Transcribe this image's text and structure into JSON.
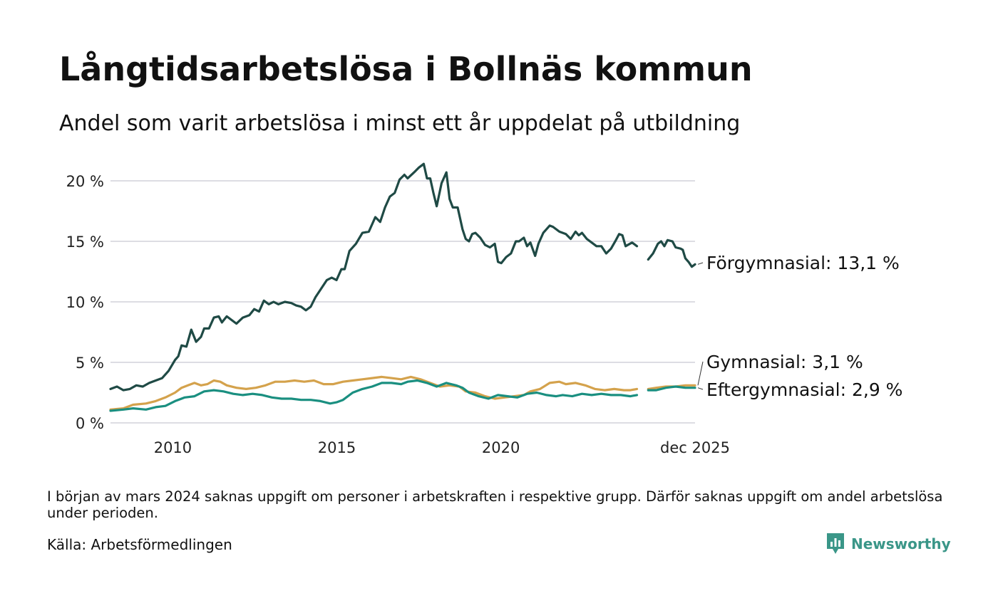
{
  "title": "Långtidsarbetslösa i Bollnäs kommun",
  "subtitle": "Andel som varit arbetslösa i minst ett år uppdelat på utbildning",
  "note": "I början av mars 2024 saknas uppgift om personer i arbetskraften i respektive grupp. Därför saknas uppgift om andel arbetslösa under perioden.",
  "source": "Källa: Arbetsförmedlingen",
  "brand": "Newsworthy",
  "colors": {
    "forgymnasial": "#1f4a45",
    "gymnasial": "#d4a24c",
    "eftergymnasial": "#1a8f80",
    "grid": "#dddde3",
    "brand": "#3a9688"
  },
  "chart_data": {
    "type": "line",
    "title": "Långtidsarbetslösa i Bollnäs kommun",
    "ylabel": "",
    "xlabel": "",
    "ylim": [
      0,
      22
    ],
    "xlim": [
      2008.1,
      2025.92
    ],
    "y_ticks": [
      0,
      5,
      10,
      15,
      20
    ],
    "y_tick_labels": [
      "0 %",
      "5 %",
      "10 %",
      "15 %",
      "20 %"
    ],
    "x_ticks": [
      2010,
      2015,
      2020,
      2025.92
    ],
    "x_tick_labels": [
      "2010",
      "2015",
      "2020",
      "dec 2025"
    ],
    "gap": [
      "2024-01",
      "2024-03"
    ],
    "series": [
      {
        "key": "forgymnasial",
        "name": "Förgymnasial",
        "end_label": "Förgymnasial: 13,1 %",
        "points": [
          [
            2008.1,
            2.8
          ],
          [
            2008.3,
            3.0
          ],
          [
            2008.5,
            2.7
          ],
          [
            2008.7,
            2.8
          ],
          [
            2008.9,
            3.1
          ],
          [
            2009.1,
            3.0
          ],
          [
            2009.3,
            3.3
          ],
          [
            2009.5,
            3.5
          ],
          [
            2009.7,
            3.7
          ],
          [
            2009.9,
            4.3
          ],
          [
            2010.1,
            5.2
          ],
          [
            2010.2,
            5.5
          ],
          [
            2010.3,
            6.4
          ],
          [
            2010.45,
            6.3
          ],
          [
            2010.6,
            7.7
          ],
          [
            2010.75,
            6.7
          ],
          [
            2010.9,
            7.1
          ],
          [
            2011.0,
            7.8
          ],
          [
            2011.15,
            7.8
          ],
          [
            2011.3,
            8.7
          ],
          [
            2011.45,
            8.8
          ],
          [
            2011.55,
            8.3
          ],
          [
            2011.7,
            8.8
          ],
          [
            2011.85,
            8.5
          ],
          [
            2012.0,
            8.2
          ],
          [
            2012.2,
            8.7
          ],
          [
            2012.4,
            8.9
          ],
          [
            2012.55,
            9.4
          ],
          [
            2012.7,
            9.2
          ],
          [
            2012.85,
            10.1
          ],
          [
            2013.0,
            9.8
          ],
          [
            2013.15,
            10.0
          ],
          [
            2013.3,
            9.8
          ],
          [
            2013.5,
            10.0
          ],
          [
            2013.7,
            9.9
          ],
          [
            2013.85,
            9.7
          ],
          [
            2014.0,
            9.6
          ],
          [
            2014.15,
            9.3
          ],
          [
            2014.3,
            9.6
          ],
          [
            2014.45,
            10.4
          ],
          [
            2014.6,
            11.0
          ],
          [
            2014.8,
            11.8
          ],
          [
            2014.95,
            12.0
          ],
          [
            2015.1,
            11.8
          ],
          [
            2015.25,
            12.7
          ],
          [
            2015.35,
            12.7
          ],
          [
            2015.5,
            14.2
          ],
          [
            2015.7,
            14.8
          ],
          [
            2015.9,
            15.7
          ],
          [
            2016.1,
            15.8
          ],
          [
            2016.3,
            17.0
          ],
          [
            2016.45,
            16.6
          ],
          [
            2016.6,
            17.8
          ],
          [
            2016.75,
            18.7
          ],
          [
            2016.9,
            19.0
          ],
          [
            2017.05,
            20.1
          ],
          [
            2017.2,
            20.5
          ],
          [
            2017.3,
            20.2
          ],
          [
            2017.5,
            20.7
          ],
          [
            2017.65,
            21.1
          ],
          [
            2017.8,
            21.4
          ],
          [
            2017.9,
            20.2
          ],
          [
            2018.0,
            20.2
          ],
          [
            2018.1,
            19.0
          ],
          [
            2018.2,
            17.9
          ],
          [
            2018.35,
            19.8
          ],
          [
            2018.5,
            20.7
          ],
          [
            2018.6,
            18.5
          ],
          [
            2018.7,
            17.8
          ],
          [
            2018.85,
            17.8
          ],
          [
            2019.0,
            16.0
          ],
          [
            2019.1,
            15.2
          ],
          [
            2019.2,
            15.0
          ],
          [
            2019.3,
            15.6
          ],
          [
            2019.4,
            15.7
          ],
          [
            2019.55,
            15.3
          ],
          [
            2019.7,
            14.7
          ],
          [
            2019.85,
            14.5
          ],
          [
            2020.0,
            14.8
          ],
          [
            2020.1,
            13.3
          ],
          [
            2020.2,
            13.2
          ],
          [
            2020.35,
            13.7
          ],
          [
            2020.5,
            14.0
          ],
          [
            2020.65,
            15.0
          ],
          [
            2020.75,
            15.0
          ],
          [
            2020.9,
            15.3
          ],
          [
            2021.0,
            14.6
          ],
          [
            2021.1,
            14.9
          ],
          [
            2021.25,
            13.8
          ],
          [
            2021.35,
            14.8
          ],
          [
            2021.5,
            15.7
          ],
          [
            2021.7,
            16.3
          ],
          [
            2021.8,
            16.2
          ],
          [
            2022.0,
            15.8
          ],
          [
            2022.2,
            15.6
          ],
          [
            2022.35,
            15.2
          ],
          [
            2022.5,
            15.8
          ],
          [
            2022.6,
            15.5
          ],
          [
            2022.7,
            15.7
          ],
          [
            2022.85,
            15.2
          ],
          [
            2023.0,
            14.9
          ],
          [
            2023.15,
            14.6
          ],
          [
            2023.3,
            14.6
          ],
          [
            2023.45,
            14.0
          ],
          [
            2023.6,
            14.4
          ],
          [
            2023.75,
            15.1
          ],
          [
            2023.85,
            15.6
          ],
          [
            2023.95,
            15.5
          ],
          [
            2024.05,
            14.6
          ],
          [
            2024.25,
            14.9
          ],
          [
            2024.4,
            14.6
          ],
          null,
          [
            2024.75,
            13.5
          ],
          [
            2024.9,
            14.0
          ],
          [
            2025.05,
            14.8
          ],
          [
            2025.15,
            15.0
          ],
          [
            2025.25,
            14.6
          ],
          [
            2025.35,
            15.1
          ],
          [
            2025.5,
            15.0
          ],
          [
            2025.6,
            14.5
          ],
          [
            2025.75,
            14.4
          ],
          [
            2025.82,
            14.3
          ],
          [
            2025.9,
            13.6
          ],
          [
            2026.0,
            13.3
          ],
          [
            2026.1,
            12.9
          ],
          [
            2026.2,
            13.1
          ]
        ]
      },
      {
        "key": "gymnasial",
        "name": "Gymnasial",
        "end_label": "Gymnasial:  3,1 %",
        "points": [
          [
            2008.1,
            1.1
          ],
          [
            2008.5,
            1.2
          ],
          [
            2008.8,
            1.5
          ],
          [
            2009.2,
            1.6
          ],
          [
            2009.5,
            1.8
          ],
          [
            2009.8,
            2.1
          ],
          [
            2010.1,
            2.5
          ],
          [
            2010.3,
            2.9
          ],
          [
            2010.5,
            3.1
          ],
          [
            2010.7,
            3.3
          ],
          [
            2010.9,
            3.1
          ],
          [
            2011.1,
            3.2
          ],
          [
            2011.3,
            3.5
          ],
          [
            2011.5,
            3.4
          ],
          [
            2011.7,
            3.1
          ],
          [
            2012.0,
            2.9
          ],
          [
            2012.3,
            2.8
          ],
          [
            2012.6,
            2.9
          ],
          [
            2012.9,
            3.1
          ],
          [
            2013.2,
            3.4
          ],
          [
            2013.5,
            3.4
          ],
          [
            2013.8,
            3.5
          ],
          [
            2014.1,
            3.4
          ],
          [
            2014.4,
            3.5
          ],
          [
            2014.7,
            3.2
          ],
          [
            2015.0,
            3.2
          ],
          [
            2015.3,
            3.4
          ],
          [
            2015.6,
            3.5
          ],
          [
            2015.9,
            3.6
          ],
          [
            2016.2,
            3.7
          ],
          [
            2016.5,
            3.8
          ],
          [
            2016.8,
            3.7
          ],
          [
            2017.1,
            3.6
          ],
          [
            2017.4,
            3.8
          ],
          [
            2017.7,
            3.6
          ],
          [
            2018.0,
            3.3
          ],
          [
            2018.3,
            3.0
          ],
          [
            2018.6,
            3.1
          ],
          [
            2018.9,
            3.0
          ],
          [
            2019.1,
            2.6
          ],
          [
            2019.4,
            2.5
          ],
          [
            2019.7,
            2.2
          ],
          [
            2020.0,
            2.0
          ],
          [
            2020.3,
            2.1
          ],
          [
            2020.6,
            2.2
          ],
          [
            2020.9,
            2.3
          ],
          [
            2021.1,
            2.6
          ],
          [
            2021.4,
            2.8
          ],
          [
            2021.7,
            3.3
          ],
          [
            2022.0,
            3.4
          ],
          [
            2022.2,
            3.2
          ],
          [
            2022.5,
            3.3
          ],
          [
            2022.8,
            3.1
          ],
          [
            2023.1,
            2.8
          ],
          [
            2023.4,
            2.7
          ],
          [
            2023.7,
            2.8
          ],
          [
            2024.0,
            2.7
          ],
          [
            2024.2,
            2.7
          ],
          [
            2024.4,
            2.8
          ],
          null,
          [
            2024.75,
            2.8
          ],
          [
            2025.0,
            2.9
          ],
          [
            2025.3,
            3.0
          ],
          [
            2025.6,
            3.0
          ],
          [
            2025.9,
            3.1
          ],
          [
            2026.2,
            3.1
          ]
        ]
      },
      {
        "key": "eftergymnasial",
        "name": "Eftergymnasial",
        "end_label": "Eftergymnasial:  2,9 %",
        "points": [
          [
            2008.1,
            1.0
          ],
          [
            2008.5,
            1.1
          ],
          [
            2008.8,
            1.2
          ],
          [
            2009.2,
            1.1
          ],
          [
            2009.5,
            1.3
          ],
          [
            2009.8,
            1.4
          ],
          [
            2010.1,
            1.8
          ],
          [
            2010.4,
            2.1
          ],
          [
            2010.7,
            2.2
          ],
          [
            2011.0,
            2.6
          ],
          [
            2011.3,
            2.7
          ],
          [
            2011.6,
            2.6
          ],
          [
            2011.9,
            2.4
          ],
          [
            2012.2,
            2.3
          ],
          [
            2012.5,
            2.4
          ],
          [
            2012.8,
            2.3
          ],
          [
            2013.1,
            2.1
          ],
          [
            2013.4,
            2.0
          ],
          [
            2013.7,
            2.0
          ],
          [
            2014.0,
            1.9
          ],
          [
            2014.3,
            1.9
          ],
          [
            2014.6,
            1.8
          ],
          [
            2014.9,
            1.6
          ],
          [
            2015.1,
            1.7
          ],
          [
            2015.3,
            1.9
          ],
          [
            2015.6,
            2.5
          ],
          [
            2015.9,
            2.8
          ],
          [
            2016.2,
            3.0
          ],
          [
            2016.5,
            3.3
          ],
          [
            2016.8,
            3.3
          ],
          [
            2017.1,
            3.2
          ],
          [
            2017.3,
            3.4
          ],
          [
            2017.6,
            3.5
          ],
          [
            2017.9,
            3.3
          ],
          [
            2018.2,
            3.0
          ],
          [
            2018.5,
            3.3
          ],
          [
            2018.8,
            3.1
          ],
          [
            2019.0,
            2.9
          ],
          [
            2019.2,
            2.5
          ],
          [
            2019.5,
            2.2
          ],
          [
            2019.8,
            2.0
          ],
          [
            2020.1,
            2.3
          ],
          [
            2020.4,
            2.2
          ],
          [
            2020.7,
            2.1
          ],
          [
            2021.0,
            2.4
          ],
          [
            2021.3,
            2.5
          ],
          [
            2021.6,
            2.3
          ],
          [
            2021.9,
            2.2
          ],
          [
            2022.1,
            2.3
          ],
          [
            2022.4,
            2.2
          ],
          [
            2022.7,
            2.4
          ],
          [
            2023.0,
            2.3
          ],
          [
            2023.3,
            2.4
          ],
          [
            2023.6,
            2.3
          ],
          [
            2023.9,
            2.3
          ],
          [
            2024.2,
            2.2
          ],
          [
            2024.4,
            2.3
          ],
          null,
          [
            2024.75,
            2.7
          ],
          [
            2025.0,
            2.7
          ],
          [
            2025.3,
            2.9
          ],
          [
            2025.6,
            3.0
          ],
          [
            2025.9,
            2.9
          ],
          [
            2026.2,
            2.9
          ]
        ]
      }
    ]
  }
}
